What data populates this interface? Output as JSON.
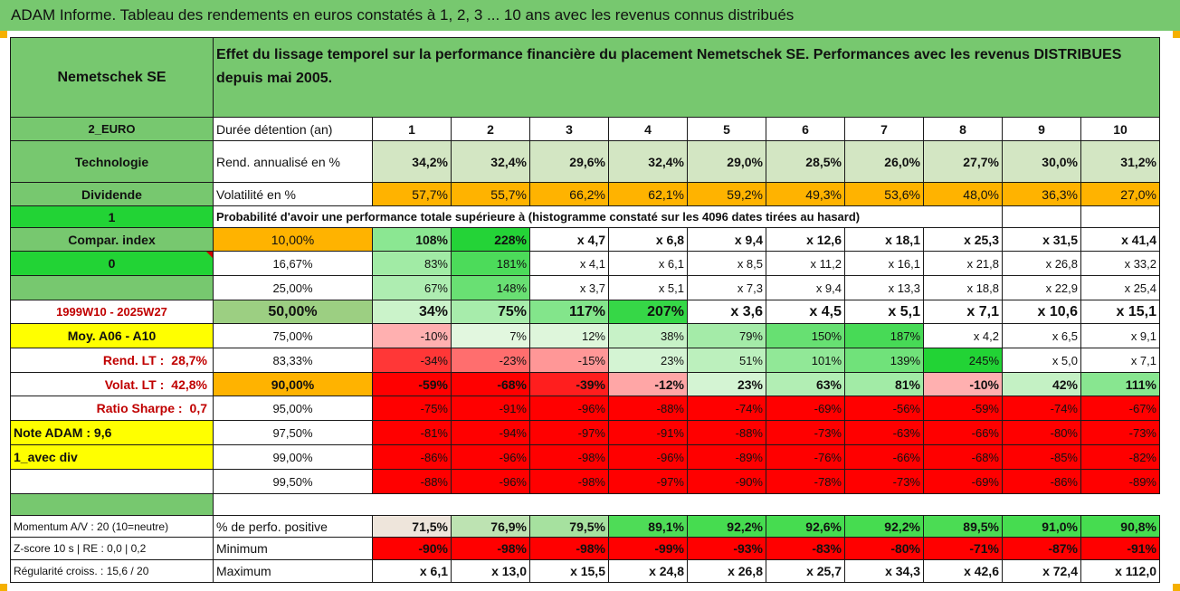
{
  "title": "ADAM Informe. Tableau des rendements en euros constatés à 1, 2, 3 ... 10 ans avec les revenus connus distribués",
  "header": {
    "company": "Nemetschek SE",
    "description": "Effet du lissage temporel sur la performance financière du placement Nemetschek SE. Performances avec les revenus DISTRIBUES depuis mai 2005."
  },
  "info": {
    "currency": "2_EURO",
    "sector": "Technologie",
    "dividend": "Dividende",
    "one": "1",
    "compar": "Compar. index",
    "zero": "0",
    "period": "1999W10 - 2025W27",
    "moy": "Moy. A06 - A10",
    "rend_lt_label": "Rend. LT :",
    "rend_lt_value": "28,7%",
    "volat_lt_label": "Volat. LT :",
    "volat_lt_value": "42,8%",
    "sharpe_label": "Ratio Sharpe :",
    "sharpe_value": "0,7",
    "note": "Note ADAM : 9,6",
    "avec_div": "1_avec div",
    "momentum": "Momentum A/V : 20 (10=neutre)",
    "zscore": "Z-score 10 s | RE : 0,0 | 0,2",
    "regularite": "Régularité croiss. : 15,6 / 20"
  },
  "labels": {
    "duree": "Durée détention (an)",
    "rend": "Rend. annualisé en %",
    "volat": "Volatilité en %",
    "proba": "Probabilité d'avoir une performance totale supérieure à (histogramme constaté sur les 4096 dates tirées au hasard)",
    "pct_pos": "% de perfo. positive",
    "minimum": "Minimum",
    "maximum": "Maximum"
  },
  "years": [
    "1",
    "2",
    "3",
    "4",
    "5",
    "6",
    "7",
    "8",
    "9",
    "10"
  ],
  "rend": [
    "34,2%",
    "32,4%",
    "29,6%",
    "32,4%",
    "29,0%",
    "28,5%",
    "26,0%",
    "27,7%",
    "30,0%",
    "31,2%"
  ],
  "volat": [
    "57,7%",
    "55,7%",
    "66,2%",
    "62,1%",
    "59,2%",
    "49,3%",
    "53,6%",
    "48,0%",
    "36,3%",
    "27,0%"
  ],
  "prob_rows": [
    {
      "p": "10,00%",
      "v": [
        "108%",
        "228%",
        "x 4,7",
        "x 6,8",
        "x 9,4",
        "x 12,6",
        "x 18,1",
        "x 25,3",
        "x 31,5",
        "x 41,4"
      ]
    },
    {
      "p": "16,67%",
      "v": [
        "83%",
        "181%",
        "x 4,1",
        "x 6,1",
        "x 8,5",
        "x 11,2",
        "x 16,1",
        "x 21,8",
        "x 26,8",
        "x 33,2"
      ]
    },
    {
      "p": "25,00%",
      "v": [
        "67%",
        "148%",
        "x 3,7",
        "x 5,1",
        "x 7,3",
        "x 9,4",
        "x 13,3",
        "x 18,8",
        "x 22,9",
        "x 25,4"
      ]
    },
    {
      "p": "50,00%",
      "v": [
        "34%",
        "75%",
        "117%",
        "207%",
        "x 3,6",
        "x 4,5",
        "x 5,1",
        "x 7,1",
        "x 10,6",
        "x 15,1"
      ]
    },
    {
      "p": "75,00%",
      "v": [
        "-10%",
        "7%",
        "12%",
        "38%",
        "79%",
        "150%",
        "187%",
        "x 4,2",
        "x 6,5",
        "x 9,1"
      ]
    },
    {
      "p": "83,33%",
      "v": [
        "-34%",
        "-23%",
        "-15%",
        "23%",
        "51%",
        "101%",
        "139%",
        "245%",
        "x 5,0",
        "x 7,1"
      ]
    },
    {
      "p": "90,00%",
      "v": [
        "-59%",
        "-68%",
        "-39%",
        "-12%",
        "23%",
        "63%",
        "81%",
        "-10%",
        "42%",
        "111%"
      ]
    },
    {
      "p": "95,00%",
      "v": [
        "-75%",
        "-91%",
        "-96%",
        "-88%",
        "-74%",
        "-69%",
        "-56%",
        "-59%",
        "-74%",
        "-67%"
      ]
    },
    {
      "p": "97,50%",
      "v": [
        "-81%",
        "-94%",
        "-97%",
        "-91%",
        "-88%",
        "-73%",
        "-63%",
        "-66%",
        "-80%",
        "-73%"
      ]
    },
    {
      "p": "99,00%",
      "v": [
        "-86%",
        "-96%",
        "-98%",
        "-96%",
        "-89%",
        "-76%",
        "-66%",
        "-68%",
        "-85%",
        "-82%"
      ]
    },
    {
      "p": "99,50%",
      "v": [
        "-88%",
        "-96%",
        "-98%",
        "-97%",
        "-90%",
        "-78%",
        "-73%",
        "-69%",
        "-86%",
        "-89%"
      ]
    }
  ],
  "pct_pos": [
    "71,5%",
    "76,9%",
    "79,5%",
    "89,1%",
    "92,2%",
    "92,6%",
    "92,2%",
    "89,5%",
    "91,0%",
    "90,8%"
  ],
  "minimum": [
    "-90%",
    "-98%",
    "-98%",
    "-99%",
    "-93%",
    "-83%",
    "-80%",
    "-71%",
    "-87%",
    "-91%"
  ],
  "maximum": [
    "x 6,1",
    "x 13,0",
    "x 15,5",
    "x 24,8",
    "x 26,8",
    "x 25,7",
    "x 34,3",
    "x 42,6",
    "x 72,4",
    "x 112,0"
  ],
  "colors": {
    "header_green": "#77c86f",
    "rend_green": "#d3e6c3",
    "volat_orange": "#ffb300",
    "bright_green": "#22d335",
    "yellow": "#ffff00",
    "red": "#ff0000",
    "label_red": "#c00000"
  }
}
